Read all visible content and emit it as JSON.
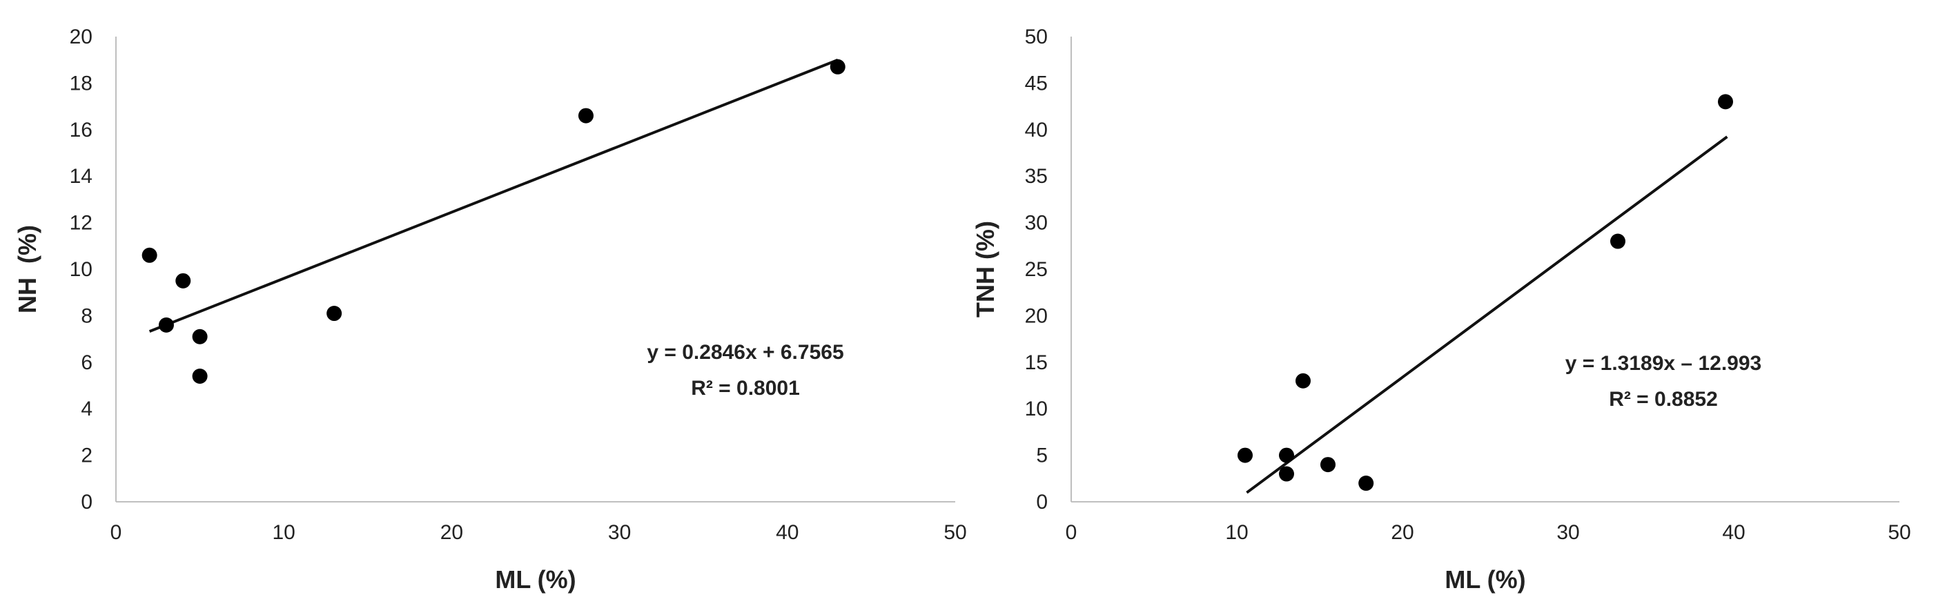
{
  "chart_data": [
    {
      "type": "scatter",
      "xlabel": "ML (%)",
      "ylabel": "NH  (%)",
      "xlim": [
        0,
        50
      ],
      "ylim": [
        0,
        20
      ],
      "x_ticks": [
        "0",
        "10",
        "20",
        "30",
        "40",
        "50"
      ],
      "y_ticks": [
        "0",
        "2",
        "4",
        "6",
        "8",
        "10",
        "12",
        "14",
        "16",
        "18",
        "20"
      ],
      "grid": false,
      "points": [
        {
          "x": 2,
          "y": 10.6
        },
        {
          "x": 3,
          "y": 7.6
        },
        {
          "x": 4,
          "y": 9.5
        },
        {
          "x": 5,
          "y": 7.1
        },
        {
          "x": 5,
          "y": 5.4
        },
        {
          "x": 13,
          "y": 8.1
        },
        {
          "x": 28,
          "y": 16.6
        },
        {
          "x": 43,
          "y": 18.7
        }
      ],
      "trendline": {
        "slope": 0.2846,
        "intercept": 6.7565,
        "x_range": [
          2,
          43
        ]
      },
      "equation": "y = 0.2846x + 6.7565",
      "r_squared": "R² = 0.8001"
    },
    {
      "type": "scatter",
      "xlabel": "ML (%)",
      "ylabel": "TNH (%)",
      "xlim": [
        0,
        50
      ],
      "ylim": [
        0,
        50
      ],
      "x_ticks": [
        "0",
        "10",
        "20",
        "30",
        "40",
        "50"
      ],
      "y_ticks": [
        "0",
        "5",
        "10",
        "15",
        "20",
        "25",
        "30",
        "35",
        "40",
        "45",
        "50"
      ],
      "grid": false,
      "points": [
        {
          "x": 10.5,
          "y": 5
        },
        {
          "x": 13,
          "y": 5
        },
        {
          "x": 13,
          "y": 3
        },
        {
          "x": 14,
          "y": 13
        },
        {
          "x": 15.5,
          "y": 4
        },
        {
          "x": 17.8,
          "y": 2
        },
        {
          "x": 33,
          "y": 28
        },
        {
          "x": 39.5,
          "y": 43
        }
      ],
      "trendline": {
        "slope": 1.3189,
        "intercept": -12.993,
        "x_range": [
          10.6,
          39.6
        ]
      },
      "equation": "y = 1.3189x – 12.993",
      "r_squared": "R² = 0.8852"
    }
  ]
}
